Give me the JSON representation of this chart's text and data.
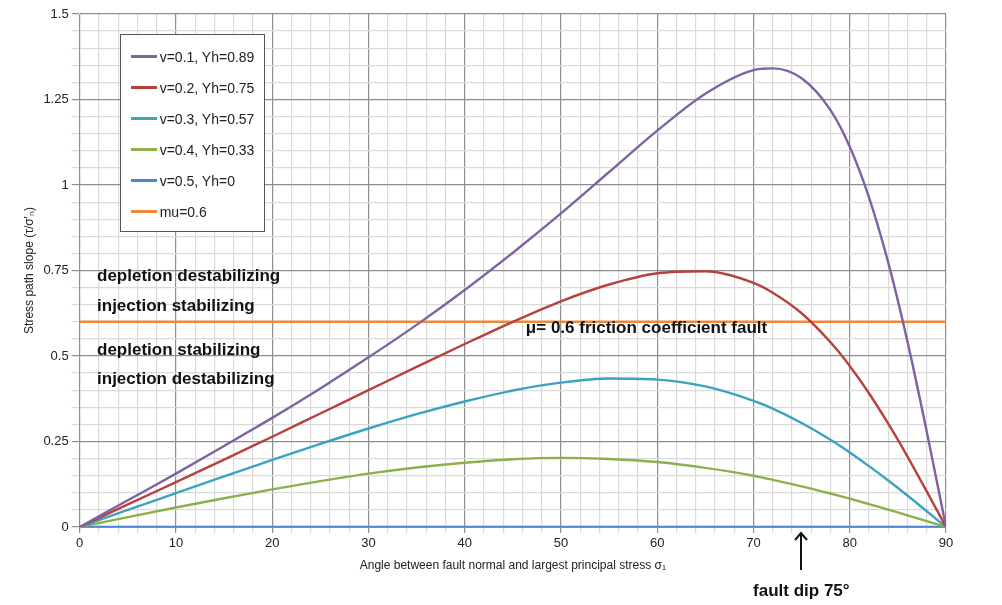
{
  "chart_data": {
    "type": "line",
    "xlabel": "Angle between fault normal and largest principal stress σ₁",
    "ylabel": "Stress path slope (τ/σ'ₙ)",
    "xlim": [
      0,
      90
    ],
    "ylim": [
      0,
      1.5
    ],
    "xticks": [
      0,
      {
        "value": 2,
        "label": null
      },
      {
        "value": 4,
        "label": null
      },
      {
        "value": 6,
        "label": null
      },
      {
        "value": 8,
        "label": null
      },
      10,
      {
        "value": 12,
        "label": null
      },
      {
        "value": 14,
        "label": null
      },
      {
        "value": 16,
        "label": null
      },
      {
        "value": 18,
        "label": null
      },
      20,
      {
        "value": 22,
        "label": null
      },
      {
        "value": 24,
        "label": null
      },
      {
        "value": 26,
        "label": null
      },
      {
        "value": 28,
        "label": null
      },
      30,
      {
        "value": 32,
        "label": null
      },
      {
        "value": 34,
        "label": null
      },
      {
        "value": 36,
        "label": null
      },
      {
        "value": 38,
        "label": null
      },
      40,
      {
        "value": 42,
        "label": null
      },
      {
        "value": 44,
        "label": null
      },
      {
        "value": 46,
        "label": null
      },
      {
        "value": 48,
        "label": null
      },
      50,
      {
        "value": 52,
        "label": null
      },
      {
        "value": 54,
        "label": null
      },
      {
        "value": 56,
        "label": null
      },
      {
        "value": 58,
        "label": null
      },
      60,
      {
        "value": 62,
        "label": null
      },
      {
        "value": 64,
        "label": null
      },
      {
        "value": 66,
        "label": null
      },
      {
        "value": 68,
        "label": null
      },
      70,
      {
        "value": 72,
        "label": null
      },
      {
        "value": 74,
        "label": null
      },
      {
        "value": 76,
        "label": null
      },
      {
        "value": 78,
        "label": null
      },
      80,
      {
        "value": 82,
        "label": null
      },
      {
        "value": 84,
        "label": null
      },
      {
        "value": 86,
        "label": null
      },
      {
        "value": 88,
        "label": null
      },
      90
    ],
    "yticks": [
      0,
      {
        "value": 0.05,
        "label": null
      },
      {
        "value": 0.1,
        "label": null
      },
      {
        "value": 0.15,
        "label": null
      },
      {
        "value": 0.2,
        "label": null
      },
      0.25,
      {
        "value": 0.3,
        "label": null
      },
      {
        "value": 0.35,
        "label": null
      },
      {
        "value": 0.4,
        "label": null
      },
      {
        "value": 0.45,
        "label": null
      },
      0.5,
      {
        "value": 0.55,
        "label": null
      },
      {
        "value": 0.6,
        "label": null
      },
      {
        "value": 0.65,
        "label": null
      },
      {
        "value": 0.7,
        "label": null
      },
      0.75,
      {
        "value": 0.8,
        "label": null
      },
      {
        "value": 0.85,
        "label": null
      },
      {
        "value": 0.9,
        "label": null
      },
      {
        "value": 0.95,
        "label": null
      },
      1,
      {
        "value": 1.05,
        "label": null
      },
      {
        "value": 1.1,
        "label": null
      },
      {
        "value": 1.15,
        "label": null
      },
      {
        "value": 1.2,
        "label": null
      },
      1.25,
      {
        "value": 1.3,
        "label": null
      },
      {
        "value": 1.35,
        "label": null
      },
      {
        "value": 1.4,
        "label": null
      },
      {
        "value": 1.45,
        "label": null
      },
      1.5
    ],
    "grid": true,
    "legend": "top left",
    "marker": "none",
    "line_style": "solid",
    "annotations": [
      "depletion destabilizing",
      "injection stabilizing",
      "depletion stabilizing",
      "injection destabilizing",
      "μ= 0.6 friction coefficient fault",
      "fault dip 75°"
    ],
    "series": [
      {
        "name": "v=0.1, Yh=0.89",
        "color": "#7f62a1",
        "x": [
          0,
          5,
          10,
          15,
          20,
          25,
          30,
          35,
          40,
          45,
          50,
          55,
          60,
          65,
          70,
          72,
          75,
          78,
          80,
          82,
          84,
          86,
          88,
          90
        ],
        "values": [
          0,
          0.078,
          0.156,
          0.237,
          0.319,
          0.405,
          0.496,
          0.591,
          0.693,
          0.802,
          0.917,
          1.038,
          1.159,
          1.267,
          1.336,
          1.341,
          1.312,
          1.219,
          1.112,
          0.964,
          0.773,
          0.542,
          0.279,
          0
        ]
      },
      {
        "name": "v=0.2, Yh=0.75",
        "color": "#b7413d",
        "x": [
          0,
          5,
          10,
          15,
          20,
          25,
          30,
          35,
          40,
          45,
          50,
          55,
          60,
          65,
          70,
          72,
          75,
          78,
          80,
          82,
          84,
          86,
          88,
          90
        ],
        "values": [
          0,
          0.066,
          0.131,
          0.197,
          0.264,
          0.332,
          0.4,
          0.468,
          0.535,
          0.6,
          0.66,
          0.709,
          0.742,
          0.748,
          0.714,
          0.685,
          0.625,
          0.54,
          0.471,
          0.391,
          0.302,
          0.206,
          0.104,
          0
        ]
      },
      {
        "name": "v=0.3, Yh=0.57",
        "color": "#3ba3c0",
        "x": [
          0,
          5,
          10,
          15,
          20,
          25,
          30,
          35,
          40,
          45,
          50,
          55,
          60,
          65,
          70,
          72,
          75,
          78,
          80,
          82,
          84,
          86,
          88,
          90
        ],
        "values": [
          0,
          0.05,
          0.099,
          0.148,
          0.196,
          0.243,
          0.288,
          0.33,
          0.367,
          0.399,
          0.422,
          0.434,
          0.431,
          0.411,
          0.369,
          0.346,
          0.304,
          0.255,
          0.218,
          0.178,
          0.136,
          0.092,
          0.046,
          0
        ]
      },
      {
        "name": "v=0.4, Yh=0.33",
        "color": "#8db04a",
        "x": [
          0,
          5,
          10,
          15,
          20,
          25,
          30,
          35,
          40,
          45,
          50,
          55,
          60,
          65,
          70,
          72,
          75,
          78,
          80,
          82,
          84,
          86,
          88,
          90
        ],
        "values": [
          0,
          0.029,
          0.057,
          0.084,
          0.11,
          0.134,
          0.156,
          0.174,
          0.188,
          0.198,
          0.202,
          0.199,
          0.19,
          0.173,
          0.15,
          0.138,
          0.119,
          0.098,
          0.083,
          0.067,
          0.051,
          0.034,
          0.017,
          0
        ]
      },
      {
        "name": "v=0.5, Yh=0",
        "color": "#4a84d0",
        "x": [
          0,
          90
        ],
        "values": [
          0,
          0
        ]
      },
      {
        "name": "mu=0.6",
        "color": "#f0883a",
        "x": [
          0,
          90
        ],
        "values": [
          0.6,
          0.6
        ]
      }
    ]
  }
}
